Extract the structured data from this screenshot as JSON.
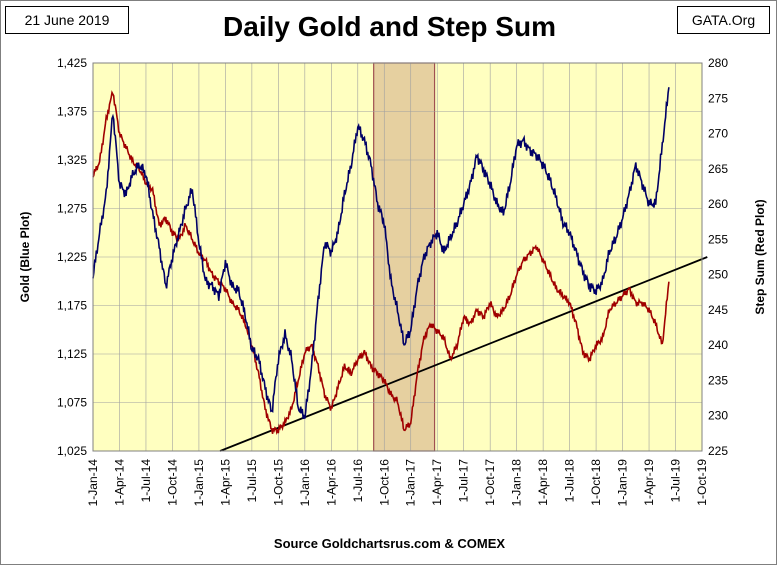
{
  "header": {
    "date": "21 June 2019",
    "brand": "GATA.Org",
    "title": "Daily Gold and Step Sum"
  },
  "footer": {
    "source": "Source Goldchartsrus.com & COMEX"
  },
  "colors": {
    "plot_background": "#FFFFC0",
    "highlight_band": "#E6D0A0",
    "highlight_border": "#A05050",
    "gold_line": "#000066",
    "step_sum_line": "#A00000",
    "trend_line": "#000000",
    "grid": "#A0A0A0"
  },
  "chart_data": {
    "type": "line",
    "title": "Daily Gold and Step Sum",
    "x_categories": [
      "1-Jan-14",
      "1-Apr-14",
      "1-Jul-14",
      "1-Oct-14",
      "1-Jan-15",
      "1-Apr-15",
      "1-Jul-15",
      "1-Oct-15",
      "1-Jan-16",
      "1-Apr-16",
      "1-Jul-16",
      "1-Oct-16",
      "1-Jan-17",
      "1-Apr-17",
      "1-Jul-17",
      "1-Oct-17",
      "1-Jan-18",
      "1-Apr-18",
      "1-Jul-18",
      "1-Oct-18",
      "1-Jan-19",
      "1-Apr-19",
      "1-Jul-19",
      "1-Oct-19"
    ],
    "y_left": {
      "label": "Gold   (Blue Plot)",
      "range": [
        1025,
        1425
      ],
      "ticks": [
        "1,025",
        "1,075",
        "1,125",
        "1,175",
        "1,225",
        "1,275",
        "1,325",
        "1,375",
        "1,425"
      ]
    },
    "y_right": {
      "label": "Step Sum   (Red Plot)",
      "range": [
        225,
        280
      ],
      "ticks": [
        "225",
        "230",
        "235",
        "240",
        "245",
        "250",
        "255",
        "260",
        "265",
        "270",
        "275",
        "280"
      ]
    },
    "grid": true,
    "highlight_period": {
      "from_quarter_index": 10.6,
      "to_quarter_index": 12.9
    },
    "series": [
      {
        "name": "Gold",
        "axis": "left",
        "x": [
          0,
          0.25,
          0.5,
          0.75,
          1,
          1.25,
          1.5,
          1.75,
          2,
          2.25,
          2.5,
          2.75,
          3,
          3.25,
          3.5,
          3.75,
          4,
          4.25,
          4.5,
          4.75,
          5,
          5.25,
          5.5,
          5.75,
          6,
          6.25,
          6.5,
          6.75,
          7,
          7.25,
          7.5,
          7.75,
          8,
          8.25,
          8.5,
          8.75,
          9,
          9.25,
          9.5,
          9.75,
          10,
          10.25,
          10.5,
          10.75,
          11,
          11.25,
          11.5,
          11.75,
          12,
          12.25,
          12.5,
          12.75,
          13,
          13.25,
          13.5,
          13.75,
          14,
          14.25,
          14.5,
          14.75,
          15,
          15.25,
          15.5,
          15.75,
          16,
          16.25,
          16.5,
          16.75,
          17,
          17.25,
          17.5,
          17.75,
          18,
          18.25,
          18.5,
          18.75,
          19,
          19.25,
          19.5,
          19.75,
          20,
          20.25,
          20.5,
          20.75,
          21,
          21.25,
          21.5,
          21.75
        ],
        "values": [
          1205,
          1250,
          1290,
          1375,
          1300,
          1290,
          1310,
          1320,
          1310,
          1270,
          1235,
          1195,
          1225,
          1250,
          1275,
          1295,
          1240,
          1200,
          1195,
          1185,
          1220,
          1195,
          1190,
          1165,
          1130,
          1120,
          1090,
          1065,
          1120,
          1145,
          1120,
          1070,
          1060,
          1110,
          1180,
          1240,
          1230,
          1250,
          1290,
          1320,
          1360,
          1345,
          1320,
          1280,
          1260,
          1200,
          1170,
          1135,
          1150,
          1195,
          1225,
          1240,
          1250,
          1230,
          1245,
          1260,
          1280,
          1300,
          1330,
          1315,
          1300,
          1280,
          1270,
          1300,
          1340,
          1345,
          1335,
          1330,
          1320,
          1305,
          1285,
          1260,
          1250,
          1230,
          1210,
          1195,
          1190,
          1200,
          1230,
          1245,
          1265,
          1290,
          1320,
          1300,
          1280,
          1280,
          1340,
          1400
        ]
      },
      {
        "name": "Step Sum",
        "axis": "right",
        "x": [
          0,
          0.25,
          0.5,
          0.75,
          1,
          1.25,
          1.5,
          1.75,
          2,
          2.25,
          2.5,
          2.75,
          3,
          3.25,
          3.5,
          3.75,
          4,
          4.25,
          4.5,
          4.75,
          5,
          5.25,
          5.5,
          5.75,
          6,
          6.25,
          6.5,
          6.75,
          7,
          7.25,
          7.5,
          7.75,
          8,
          8.25,
          8.5,
          8.75,
          9,
          9.25,
          9.5,
          9.75,
          10,
          10.25,
          10.5,
          10.75,
          11,
          11.25,
          11.5,
          11.75,
          12,
          12.25,
          12.5,
          12.75,
          13,
          13.25,
          13.5,
          13.75,
          14,
          14.25,
          14.5,
          14.75,
          15,
          15.25,
          15.5,
          15.75,
          16,
          16.25,
          16.5,
          16.75,
          17,
          17.25,
          17.5,
          17.75,
          18,
          18.25,
          18.5,
          18.75,
          19,
          19.25,
          19.5,
          19.75,
          20,
          20.25,
          20.5,
          20.75,
          21,
          21.25,
          21.5,
          21.75
        ],
        "values": [
          264,
          266,
          272,
          276,
          270,
          268,
          266,
          265,
          263,
          262,
          257,
          258,
          256,
          255,
          257,
          255,
          253,
          252,
          250,
          249,
          248,
          246,
          245,
          243,
          240,
          236,
          231,
          228,
          228,
          229,
          231,
          235,
          239,
          240,
          237,
          233,
          231,
          234,
          237,
          236,
          238,
          239,
          237,
          236,
          235,
          233,
          232,
          228,
          229,
          236,
          241,
          243,
          242,
          241,
          238,
          240,
          244,
          243,
          245,
          244,
          246,
          244,
          245,
          247,
          250,
          252,
          253,
          254,
          252,
          250,
          248,
          247,
          246,
          243,
          239,
          238,
          240,
          241,
          245,
          246,
          247,
          248,
          246,
          246,
          245,
          243,
          240,
          249
        ]
      },
      {
        "name": "Trend",
        "axis": "right",
        "x": [
          4.8,
          23.2
        ],
        "values": [
          225,
          252.5
        ]
      }
    ]
  }
}
